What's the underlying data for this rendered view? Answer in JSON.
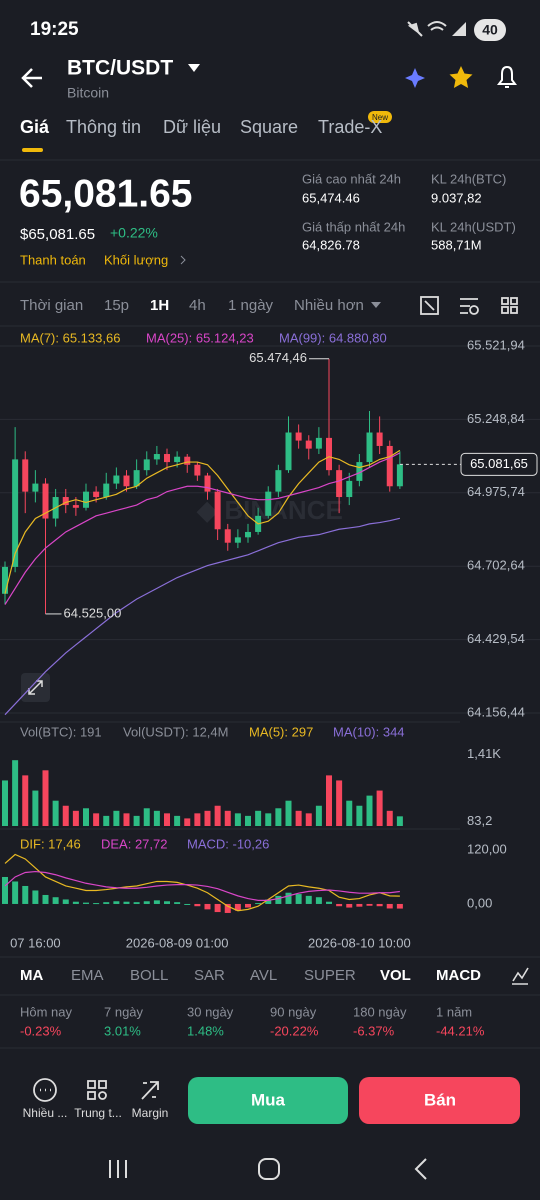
{
  "status_bar": {
    "time": "19:25",
    "battery": "40"
  },
  "header": {
    "pair": "BTC/USDT",
    "name": "Bitcoin"
  },
  "tabs": [
    "Giá",
    "Thông tin",
    "Dữ liệu",
    "Square",
    "Trade-X"
  ],
  "tab_badge": "New",
  "price": {
    "last": "65,081.65",
    "fiat": "$65,081.65",
    "change": "+0.22%",
    "links": [
      "Thanh toán",
      "Khối lượng"
    ]
  },
  "stats": [
    {
      "label": "Giá cao nhất 24h",
      "value": "65,474.46"
    },
    {
      "label": "KL 24h(BTC)",
      "value": "9.037,82"
    },
    {
      "label": "Giá thấp nhất 24h",
      "value": "64,826.78"
    },
    {
      "label": "KL 24h(USDT)",
      "value": "588,71M"
    }
  ],
  "intervals": [
    "Thời gian",
    "15p",
    "1H",
    "4h",
    "1 ngày",
    "Nhiều hơn"
  ],
  "chart_data": [
    {
      "type": "candlestick",
      "up_color": "#2ebd85",
      "down_color": "#f6465d",
      "candles": [
        [
          64600,
          64720,
          64560,
          64700
        ],
        [
          64700,
          65220,
          64680,
          65100
        ],
        [
          65100,
          65130,
          64900,
          64980
        ],
        [
          64980,
          65060,
          64940,
          65010
        ],
        [
          65010,
          65030,
          64525,
          64880
        ],
        [
          64880,
          64990,
          64850,
          64960
        ],
        [
          64960,
          64990,
          64900,
          64930
        ],
        [
          64930,
          64960,
          64890,
          64920
        ],
        [
          64920,
          65010,
          64910,
          64980
        ],
        [
          64980,
          65000,
          64940,
          64960
        ],
        [
          64960,
          65050,
          64950,
          65010
        ],
        [
          65010,
          65070,
          64990,
          65040
        ],
        [
          65040,
          65060,
          64980,
          65000
        ],
        [
          65000,
          65100,
          64990,
          65060
        ],
        [
          65060,
          65130,
          65040,
          65100
        ],
        [
          65100,
          65150,
          65080,
          65120
        ],
        [
          65120,
          65140,
          65060,
          65090
        ],
        [
          65090,
          65130,
          65070,
          65110
        ],
        [
          65110,
          65120,
          65050,
          65080
        ],
        [
          65080,
          65090,
          65020,
          65040
        ],
        [
          65040,
          65050,
          64950,
          64980
        ],
        [
          64980,
          64990,
          64800,
          64840
        ],
        [
          64840,
          64860,
          64760,
          64790
        ],
        [
          64790,
          64840,
          64770,
          64810
        ],
        [
          64810,
          64860,
          64790,
          64830
        ],
        [
          64830,
          64920,
          64820,
          64890
        ],
        [
          64890,
          65000,
          64880,
          64980
        ],
        [
          64980,
          65080,
          64960,
          65060
        ],
        [
          65060,
          65260,
          65050,
          65200
        ],
        [
          65200,
          65230,
          65140,
          65170
        ],
        [
          65170,
          65190,
          65100,
          65140
        ],
        [
          65140,
          65220,
          65120,
          65180
        ],
        [
          65180,
          65474.46,
          65040,
          65060
        ],
        [
          65060,
          65080,
          64900,
          64960
        ],
        [
          64960,
          65050,
          64930,
          65020
        ],
        [
          65020,
          65120,
          65000,
          65090
        ],
        [
          65090,
          65280,
          65070,
          65200
        ],
        [
          65200,
          65260,
          65120,
          65150
        ],
        [
          65150,
          65170,
          64980,
          65000
        ],
        [
          65000,
          65130,
          64990,
          65081.65
        ]
      ],
      "series": [
        {
          "name": "MA(7): 65.133,66",
          "color": "#e8b923",
          "values": [
            64600,
            64750,
            64830,
            64880,
            64900,
            64920,
            64940,
            64950,
            64940,
            64950,
            64960,
            64970,
            64990,
            65000,
            65030,
            65050,
            65070,
            65080,
            65090,
            65090,
            65080,
            65040,
            64990,
            64940,
            64890,
            64860,
            64870,
            64900,
            64960,
            65010,
            65050,
            65090,
            65110,
            65100,
            65080,
            65070,
            65080,
            65100,
            65110,
            65133.66
          ]
        },
        {
          "name": "MA(25): 65.124,23",
          "color": "#d946c8",
          "values": [
            64560,
            64620,
            64680,
            64730,
            64770,
            64800,
            64830,
            64850,
            64870,
            64890,
            64900,
            64910,
            64920,
            64930,
            64950,
            64960,
            64980,
            64990,
            65000,
            65000,
            64995,
            64985,
            64975,
            64965,
            64955,
            64950,
            64950,
            64955,
            64965,
            64975,
            64985,
            64995,
            65010,
            65020,
            65035,
            65050,
            65070,
            65090,
            65105,
            65124.23
          ]
        },
        {
          "name": "MA(99): 64.880,80",
          "color": "#8a6fd8",
          "values": [
            64150,
            64190,
            64230,
            64270,
            64310,
            64345,
            64380,
            64410,
            64440,
            64470,
            64500,
            64530,
            64555,
            64580,
            64600,
            64620,
            64640,
            64660,
            64675,
            64690,
            64705,
            64715,
            64725,
            64735,
            64745,
            64760,
            64775,
            64790,
            64800,
            64810,
            64815,
            64820,
            64830,
            64840,
            64845,
            64850,
            64860,
            64865,
            64872,
            64880.8
          ]
        }
      ],
      "ylim": [
        64122.9,
        65588.9
      ],
      "yticks": [
        {
          "value": 65521.94,
          "label": "65.521,94"
        },
        {
          "value": 65248.84,
          "label": "65.248,84"
        },
        {
          "value": 64975.74,
          "label": "64.975,74"
        },
        {
          "value": 64702.64,
          "label": "64.702,64"
        },
        {
          "value": 64429.54,
          "label": "64.429,54"
        },
        {
          "value": 64156.44,
          "label": "64.156,44"
        }
      ],
      "grid": true,
      "high_label": "65.474,46",
      "low_label": "64.525,00",
      "last_label": "65.081,65"
    },
    {
      "type": "bar",
      "series": [
        {
          "name": "Vol(BTC): 191",
          "color": "#8b8f99",
          "values": [
            900,
            1300,
            1000,
            700,
            1100,
            500,
            400,
            300,
            350,
            250,
            200,
            300,
            250,
            200,
            350,
            300,
            250,
            200,
            150,
            250,
            300,
            400,
            300,
            250,
            200,
            300,
            250,
            350,
            500,
            300,
            250,
            400,
            1000,
            900,
            500,
            400,
            600,
            700,
            300,
            191
          ]
        }
      ],
      "legend": [
        {
          "name": "Vol(USDT): 12,4M",
          "color": "#8b8f99"
        },
        {
          "name": "MA(5): 297",
          "color": "#e8b923"
        },
        {
          "name": "MA(10): 344",
          "color": "#8a6fd8"
        }
      ],
      "ylim": [
        0,
        1600
      ],
      "yticks": [
        {
          "value": 1410,
          "label": "1,41K"
        },
        {
          "value": 83.2,
          "label": "83,2"
        }
      ]
    },
    {
      "type": "macd",
      "positive_color": "#2ebd85",
      "negative_color": "#f6465d",
      "series": [
        {
          "name": "DIF: 17,46",
          "color": "#e8b923",
          "values": [
            90,
            110,
            100,
            80,
            60,
            50,
            40,
            35,
            30,
            30,
            32,
            35,
            38,
            40,
            45,
            50,
            50,
            48,
            42,
            35,
            25,
            10,
            -5,
            -15,
            -12,
            -5,
            10,
            25,
            40,
            42,
            38,
            35,
            30,
            15,
            10,
            12,
            20,
            25,
            18,
            17.46
          ]
        },
        {
          "name": "DEA: 27,72",
          "color": "#d946c8",
          "values": [
            40,
            60,
            70,
            72,
            70,
            65,
            58,
            52,
            46,
            42,
            38,
            36,
            35,
            35,
            37,
            40,
            42,
            43,
            43,
            42,
            39,
            34,
            26,
            18,
            12,
            8,
            8,
            12,
            18,
            24,
            28,
            30,
            31,
            29,
            26,
            24,
            24,
            25,
            25,
            27.72
          ]
        },
        {
          "name": "MACD: -10,26",
          "color": "#8a6fd8",
          "values": [
            60,
            50,
            40,
            30,
            20,
            15,
            10,
            5,
            3,
            2,
            4,
            6,
            5,
            4,
            6,
            8,
            6,
            4,
            0,
            -5,
            -12,
            -18,
            -20,
            -15,
            -8,
            2,
            10,
            18,
            25,
            22,
            18,
            15,
            5,
            -5,
            -8,
            -6,
            -4,
            -5,
            -10,
            -10.26
          ]
        }
      ],
      "ylim": [
        -69,
        160
      ],
      "yticks": [
        {
          "value": 120,
          "label": "120,00"
        },
        {
          "value": 0,
          "label": "0,00"
        }
      ],
      "categories": [
        null,
        null,
        null,
        "07 16:00",
        null,
        null,
        null,
        null,
        null,
        null,
        null,
        null,
        null,
        null,
        null,
        null,
        null,
        "2026-08-09 01:00",
        null,
        null,
        null,
        null,
        null,
        null,
        null,
        null,
        null,
        null,
        null,
        null,
        null,
        null,
        null,
        null,
        null,
        "2026-08-10 10:00",
        null,
        null,
        null,
        null
      ]
    }
  ],
  "indicators": [
    "MA",
    "EMA",
    "BOLL",
    "SAR",
    "AVL",
    "SUPER",
    "VOL",
    "MACD"
  ],
  "performance": [
    {
      "label": "Hôm nay",
      "value": "-0.23%"
    },
    {
      "label": "7 ngày",
      "value": "3.01%"
    },
    {
      "label": "30 ngày",
      "value": "1.48%"
    },
    {
      "label": "90 ngày",
      "value": "-20.22%"
    },
    {
      "label": "180 ngày",
      "value": "-6.37%"
    },
    {
      "label": "1 năm",
      "value": "-44.21%"
    }
  ],
  "actions": [
    "Nhiều ...",
    "Trung t...",
    "Margin"
  ],
  "buttons": [
    "Mua",
    "Bán"
  ]
}
